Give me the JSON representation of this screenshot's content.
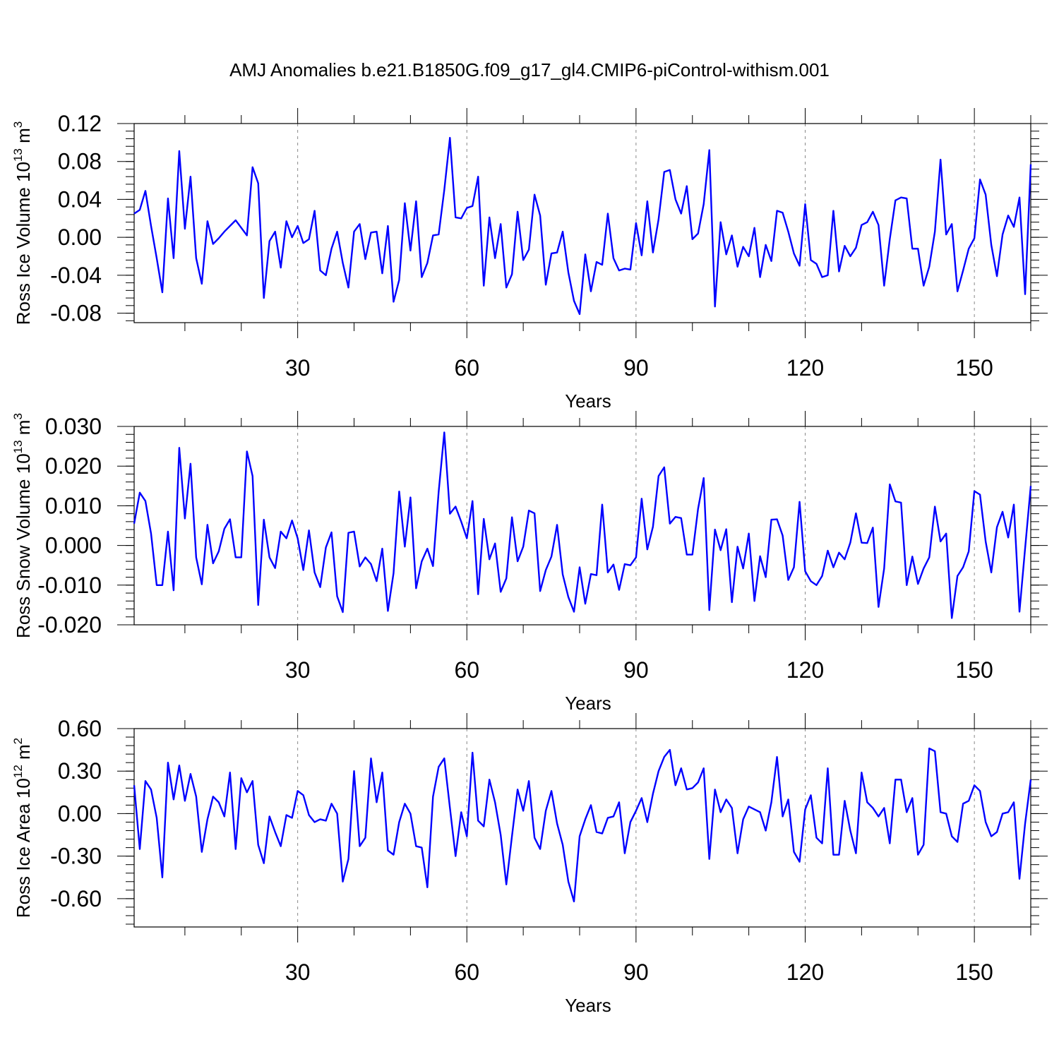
{
  "title": "AMJ Anomalies b.e21.B1850G.f09_g17_gl4.CMIP6-piControl-withism.001",
  "colors": {
    "line": "#0000ff",
    "axis": "#000000",
    "grid": "#888888"
  },
  "chart_data": [
    {
      "type": "line",
      "ylabel": "Ross Ice Volume 10",
      "ylabel_exp": "13",
      "ylabel_unit": " m",
      "ylabel_unit_exp": "3",
      "xlabel": "Years",
      "xlim": [
        1,
        160
      ],
      "ylim": [
        -0.09,
        0.12
      ],
      "xticks": [
        30,
        60,
        90,
        120,
        150
      ],
      "xtick_labels": [
        "30",
        "60",
        "90",
        "120",
        "150"
      ],
      "yticks": [
        -0.08,
        -0.04,
        0.0,
        0.04,
        0.08,
        0.12
      ],
      "ytick_labels": [
        "-0.08",
        "-0.04",
        "0.00",
        "0.04",
        "0.08",
        "0.12"
      ],
      "grid": "vertical dashed at x ticks",
      "values": [
        0.025,
        0.029,
        0.049,
        0.012,
        -0.022,
        -0.058,
        0.041,
        -0.022,
        0.091,
        0.009,
        0.064,
        -0.022,
        -0.049,
        0.017,
        -0.007,
        -0.001,
        0.006,
        0.012,
        0.018,
        0.01,
        0.002,
        0.074,
        0.057,
        -0.064,
        -0.004,
        0.006,
        -0.032,
        0.017,
        0.0,
        0.012,
        -0.006,
        -0.002,
        0.028,
        -0.035,
        -0.04,
        -0.012,
        0.006,
        -0.027,
        -0.053,
        0.006,
        0.014,
        -0.023,
        0.005,
        0.006,
        -0.038,
        0.012,
        -0.068,
        -0.045,
        0.036,
        -0.014,
        0.038,
        -0.042,
        -0.027,
        0.002,
        0.003,
        0.05,
        0.105,
        0.021,
        0.02,
        0.031,
        0.033,
        0.064,
        -0.051,
        0.021,
        -0.022,
        0.014,
        -0.053,
        -0.039,
        0.027,
        -0.024,
        -0.013,
        0.045,
        0.023,
        -0.05,
        -0.017,
        -0.016,
        0.006,
        -0.037,
        -0.067,
        -0.081,
        -0.018,
        -0.057,
        -0.026,
        -0.029,
        0.025,
        -0.022,
        -0.035,
        -0.033,
        -0.034,
        0.015,
        -0.019,
        0.038,
        -0.016,
        0.019,
        0.069,
        0.071,
        0.04,
        0.025,
        0.054,
        -0.002,
        0.004,
        0.035,
        0.092,
        -0.073,
        0.016,
        -0.018,
        0.002,
        -0.031,
        -0.01,
        -0.02,
        0.01,
        -0.042,
        -0.008,
        -0.025,
        0.028,
        0.026,
        0.006,
        -0.017,
        -0.03,
        0.035,
        -0.024,
        -0.028,
        -0.042,
        -0.04,
        0.028,
        -0.036,
        -0.009,
        -0.02,
        -0.011,
        0.013,
        0.016,
        0.027,
        0.013,
        -0.051,
        -0.002,
        0.039,
        0.042,
        0.041,
        -0.012,
        -0.012,
        -0.051,
        -0.031,
        0.006,
        0.082,
        0.003,
        0.014,
        -0.057,
        -0.035,
        -0.012,
        -0.001,
        0.061,
        0.045,
        -0.008,
        -0.041,
        0.003,
        0.023,
        0.011,
        0.042,
        -0.06,
        0.077
      ]
    },
    {
      "type": "line",
      "ylabel": "Ross Snow Volume 10",
      "ylabel_exp": "13",
      "ylabel_unit": " m",
      "ylabel_unit_exp": "3",
      "xlabel": "Years",
      "xlim": [
        1,
        160
      ],
      "ylim": [
        -0.02,
        0.03
      ],
      "xticks": [
        30,
        60,
        90,
        120,
        150
      ],
      "xtick_labels": [
        "30",
        "60",
        "90",
        "120",
        "150"
      ],
      "yticks": [
        -0.02,
        -0.01,
        0.0,
        0.01,
        0.02,
        0.03
      ],
      "ytick_labels": [
        "-0.020",
        "-0.010",
        "0.000",
        "0.010",
        "0.020",
        "0.030"
      ],
      "grid": "vertical dashed at x ticks",
      "values": [
        0.0055,
        0.0133,
        0.0112,
        0.003,
        -0.01,
        -0.01,
        0.0035,
        -0.0113,
        0.0246,
        0.0068,
        0.0206,
        -0.003,
        -0.0098,
        0.0052,
        -0.0045,
        -0.0015,
        0.0042,
        0.0066,
        -0.003,
        -0.003,
        0.0237,
        0.0175,
        -0.015,
        0.0065,
        -0.003,
        -0.0057,
        0.0035,
        0.0018,
        0.0063,
        0.0018,
        -0.0062,
        0.0038,
        -0.0068,
        -0.0105,
        -0.0005,
        0.0033,
        -0.0128,
        -0.0168,
        0.0032,
        0.0035,
        -0.0053,
        -0.003,
        -0.0047,
        -0.009,
        -0.0008,
        -0.0165,
        -0.007,
        0.0136,
        -0.0003,
        0.0121,
        -0.0108,
        -0.004,
        -0.0008,
        -0.0052,
        0.0135,
        0.0285,
        0.008,
        0.0098,
        0.006,
        0.0018,
        0.0112,
        -0.0123,
        0.0067,
        -0.0035,
        0.0005,
        -0.0117,
        -0.0083,
        0.0071,
        -0.004,
        -0.0003,
        0.0088,
        0.0081,
        -0.0115,
        -0.0062,
        -0.0028,
        0.0052,
        -0.0073,
        -0.013,
        -0.0167,
        -0.0055,
        -0.0147,
        -0.0072,
        -0.0075,
        0.0103,
        -0.0068,
        -0.0048,
        -0.0112,
        -0.0047,
        -0.005,
        -0.003,
        0.0118,
        -0.001,
        0.0047,
        0.0175,
        0.0197,
        0.0055,
        0.0072,
        0.0069,
        -0.0023,
        -0.0023,
        0.0092,
        0.017,
        -0.0163,
        0.004,
        -0.0012,
        0.0041,
        -0.0143,
        -0.0003,
        -0.0058,
        0.003,
        -0.014,
        -0.0027,
        -0.008,
        0.0065,
        0.0066,
        0.0025,
        -0.0087,
        -0.0055,
        0.011,
        -0.0065,
        -0.009,
        -0.01,
        -0.0077,
        -0.0013,
        -0.0055,
        -0.0018,
        -0.0035,
        0.0007,
        0.0081,
        0.0007,
        0.0006,
        0.0045,
        -0.0155,
        -0.0058,
        0.0154,
        0.0111,
        0.0108,
        -0.01,
        -0.0028,
        -0.0097,
        -0.0058,
        -0.003,
        0.0098,
        0.001,
        0.003,
        -0.0183,
        -0.0077,
        -0.0055,
        -0.0015,
        0.0137,
        0.0128,
        0.001,
        -0.0068,
        0.0046,
        0.0085,
        0.002,
        0.0103,
        -0.0167,
        -0.0007,
        0.015
      ]
    },
    {
      "type": "line",
      "ylabel": "Ross Ice Area 10",
      "ylabel_exp": "12",
      "ylabel_unit": " m",
      "ylabel_unit_exp": "2",
      "xlabel": "Years",
      "xlim": [
        1,
        160
      ],
      "ylim": [
        -0.8,
        0.6
      ],
      "xticks": [
        30,
        60,
        90,
        120,
        150
      ],
      "xtick_labels": [
        "30",
        "60",
        "90",
        "120",
        "150"
      ],
      "yticks": [
        -0.6,
        -0.3,
        0.0,
        0.3,
        0.6
      ],
      "ytick_labels": [
        "-0.60",
        "-0.30",
        "0.00",
        "0.30",
        "0.60"
      ],
      "grid": "vertical dashed at x ticks",
      "values": [
        0.2,
        -0.25,
        0.23,
        0.17,
        -0.03,
        -0.45,
        0.36,
        0.1,
        0.34,
        0.09,
        0.28,
        0.12,
        -0.27,
        -0.04,
        0.12,
        0.08,
        -0.02,
        0.29,
        -0.25,
        0.25,
        0.15,
        0.23,
        -0.22,
        -0.35,
        -0.02,
        -0.13,
        -0.23,
        -0.01,
        -0.03,
        0.16,
        0.13,
        -0.01,
        -0.06,
        -0.04,
        -0.05,
        0.07,
        0.0,
        -0.48,
        -0.32,
        0.3,
        -0.23,
        -0.17,
        0.39,
        0.08,
        0.29,
        -0.26,
        -0.29,
        -0.06,
        0.07,
        0.0,
        -0.23,
        -0.24,
        -0.52,
        0.12,
        0.33,
        0.39,
        0.04,
        -0.3,
        0.01,
        -0.16,
        0.43,
        -0.05,
        -0.09,
        0.24,
        0.08,
        -0.15,
        -0.5,
        -0.16,
        0.17,
        0.02,
        0.23,
        -0.17,
        -0.25,
        0.02,
        0.16,
        -0.07,
        -0.22,
        -0.48,
        -0.62,
        -0.16,
        -0.04,
        0.06,
        -0.13,
        -0.14,
        -0.03,
        -0.02,
        0.08,
        -0.28,
        -0.06,
        0.02,
        0.11,
        -0.06,
        0.14,
        0.3,
        0.4,
        0.45,
        0.2,
        0.32,
        0.17,
        0.18,
        0.22,
        0.32,
        -0.32,
        0.17,
        0.01,
        0.1,
        0.04,
        -0.28,
        -0.04,
        0.05,
        0.03,
        0.01,
        -0.12,
        0.08,
        0.4,
        -0.02,
        0.1,
        -0.27,
        -0.34,
        0.03,
        0.13,
        -0.17,
        -0.21,
        0.32,
        -0.29,
        -0.29,
        0.09,
        -0.12,
        -0.28,
        0.29,
        0.08,
        0.04,
        -0.02,
        0.04,
        -0.21,
        0.24,
        0.24,
        0.01,
        0.11,
        -0.29,
        -0.22,
        0.46,
        0.44,
        0.01,
        0.0,
        -0.16,
        -0.2,
        0.07,
        0.09,
        0.2,
        0.16,
        -0.06,
        -0.16,
        -0.13,
        0.0,
        0.01,
        0.08,
        -0.46,
        -0.07,
        0.24
      ]
    }
  ]
}
